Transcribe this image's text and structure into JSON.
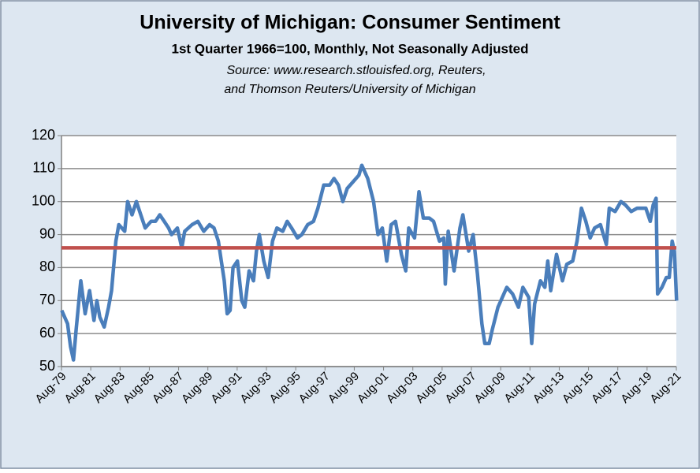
{
  "chart_data": {
    "type": "line",
    "title": "University of Michigan: Consumer Sentiment",
    "subtitle": "1st Quarter 1966=100, Monthly, Not Seasonally Adjusted",
    "source_lines": [
      "Source: www.research.stlouisfed.org, Reuters,",
      "and Thomson Reuters/University of Michigan"
    ],
    "x": [
      1979.6,
      1980.0,
      1980.2,
      1980.4,
      1980.6,
      1980.9,
      1981.2,
      1981.5,
      1981.8,
      1982.0,
      1982.2,
      1982.5,
      1982.8,
      1983.0,
      1983.3,
      1983.5,
      1983.9,
      1984.1,
      1984.4,
      1984.7,
      1985.0,
      1985.3,
      1985.7,
      1986.0,
      1986.3,
      1986.6,
      1986.9,
      1987.1,
      1987.5,
      1987.8,
      1988.0,
      1988.5,
      1988.9,
      1989.3,
      1989.7,
      1990.0,
      1990.3,
      1990.7,
      1990.9,
      1991.1,
      1991.3,
      1991.6,
      1991.9,
      1992.1,
      1992.4,
      1992.7,
      1992.9,
      1993.1,
      1993.4,
      1993.7,
      1994.0,
      1994.3,
      1994.7,
      1995.0,
      1995.3,
      1995.7,
      1996.0,
      1996.4,
      1996.8,
      1997.1,
      1997.5,
      1997.9,
      1998.2,
      1998.5,
      1998.8,
      1999.1,
      1999.5,
      1999.9,
      2000.1,
      2000.5,
      2000.9,
      2001.2,
      2001.5,
      2001.8,
      2002.1,
      2002.4,
      2002.8,
      2003.1,
      2003.3,
      2003.7,
      2004.0,
      2004.3,
      2004.7,
      2005.0,
      2005.4,
      2005.7,
      2005.8,
      2006.0,
      2006.4,
      2006.8,
      2007.0,
      2007.4,
      2007.7,
      2008.0,
      2008.3,
      2008.5,
      2008.8,
      2009.0,
      2009.4,
      2009.7,
      2010.0,
      2010.4,
      2010.8,
      2011.1,
      2011.5,
      2011.7,
      2011.9,
      2012.3,
      2012.6,
      2012.8,
      2013.0,
      2013.4,
      2013.8,
      2014.1,
      2014.5,
      2014.8,
      2015.1,
      2015.4,
      2015.7,
      2016.0,
      2016.4,
      2016.8,
      2017.0,
      2017.4,
      2017.8,
      2018.1,
      2018.5,
      2018.9,
      2019.2,
      2019.5,
      2019.8,
      2020.0,
      2020.2,
      2020.3,
      2020.6,
      2020.9,
      2021.1,
      2021.3,
      2021.45,
      2021.6
    ],
    "series": [
      {
        "name": "Consumer Sentiment",
        "color": "#4a7ebb",
        "values": [
          67,
          63,
          56,
          52,
          62,
          76,
          66,
          73,
          64,
          70,
          65,
          62,
          68,
          73,
          88,
          93,
          91,
          100,
          96,
          100,
          96,
          92,
          94,
          94,
          96,
          94,
          92,
          90,
          92,
          86,
          91,
          93,
          94,
          91,
          93,
          92,
          88,
          76,
          66,
          67,
          80,
          82,
          70,
          68,
          79,
          76,
          85,
          90,
          82,
          77,
          88,
          92,
          91,
          94,
          92,
          89,
          90,
          93,
          94,
          98,
          105,
          105,
          107,
          105,
          100,
          104,
          106,
          108,
          111,
          107,
          100,
          90,
          92,
          82,
          93,
          94,
          84,
          79,
          92,
          89,
          103,
          95,
          95,
          94,
          88,
          89,
          75,
          91,
          79,
          92,
          96,
          85,
          90,
          78,
          63,
          57,
          57,
          61,
          68,
          71,
          74,
          72,
          68,
          74,
          71,
          57,
          69,
          76,
          74,
          82,
          73,
          84,
          76,
          81,
          82,
          88,
          98,
          94,
          89,
          92,
          93,
          87,
          98,
          97,
          100,
          99,
          97,
          98,
          98,
          98,
          94,
          99,
          101,
          72,
          74,
          77,
          77,
          88,
          85,
          70
        ]
      }
    ],
    "average_line": {
      "value": 86,
      "color": "#c0504d"
    },
    "xlim": [
      1979.583,
      2021.583
    ],
    "xticks": [
      {
        "value": 1979.583,
        "label": "Aug-79"
      },
      {
        "value": 1981.583,
        "label": "Aug-81"
      },
      {
        "value": 1983.583,
        "label": "Aug-83"
      },
      {
        "value": 1985.583,
        "label": "Aug-85"
      },
      {
        "value": 1987.583,
        "label": "Aug-87"
      },
      {
        "value": 1989.583,
        "label": "Aug-89"
      },
      {
        "value": 1991.583,
        "label": "Aug-91"
      },
      {
        "value": 1993.583,
        "label": "Aug-93"
      },
      {
        "value": 1995.583,
        "label": "Aug-95"
      },
      {
        "value": 1997.583,
        "label": "Aug-97"
      },
      {
        "value": 1999.583,
        "label": "Aug-99"
      },
      {
        "value": 2001.583,
        "label": "Aug-01"
      },
      {
        "value": 2003.583,
        "label": "Aug-03"
      },
      {
        "value": 2005.583,
        "label": "Aug-05"
      },
      {
        "value": 2007.583,
        "label": "Aug-07"
      },
      {
        "value": 2009.583,
        "label": "Aug-09"
      },
      {
        "value": 2011.583,
        "label": "Aug-11"
      },
      {
        "value": 2013.583,
        "label": "Aug-13"
      },
      {
        "value": 2015.583,
        "label": "Aug-15"
      },
      {
        "value": 2017.583,
        "label": "Aug-17"
      },
      {
        "value": 2019.583,
        "label": "Aug-19"
      },
      {
        "value": 2021.583,
        "label": "Aug-21"
      }
    ],
    "ylim": [
      50,
      120
    ],
    "yticks": [
      50,
      60,
      70,
      80,
      90,
      100,
      110,
      120
    ],
    "grid": true
  }
}
